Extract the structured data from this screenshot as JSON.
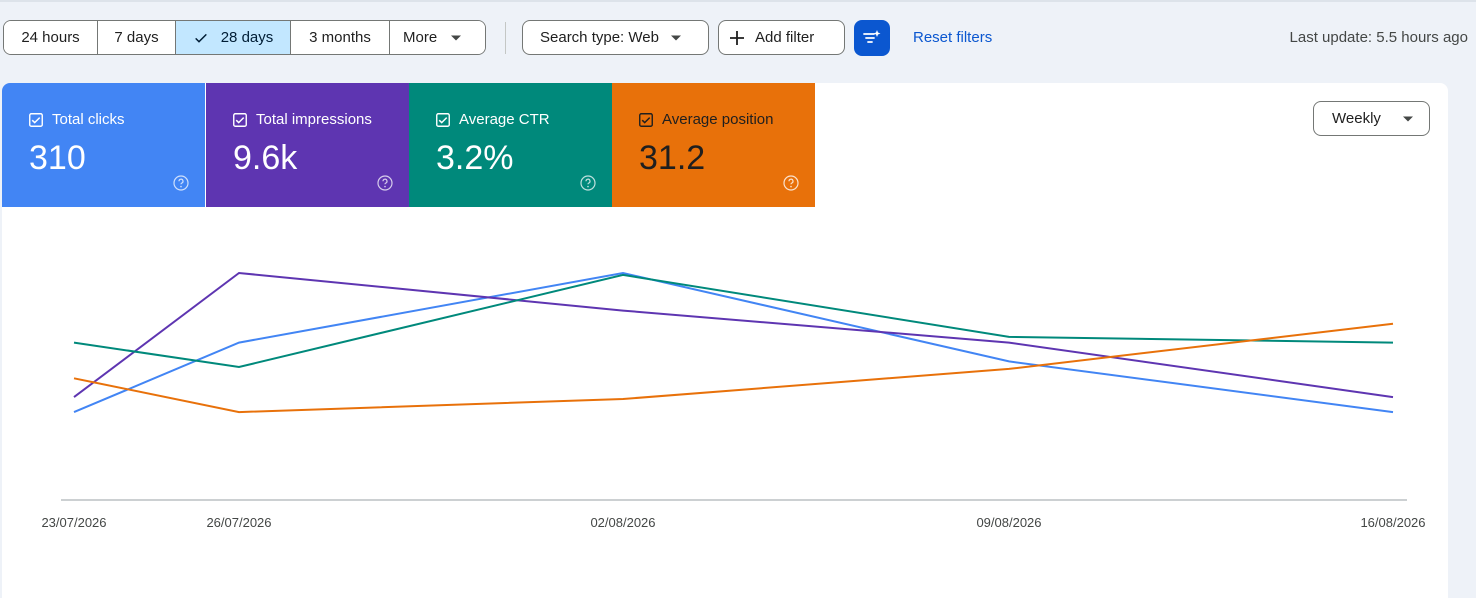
{
  "toolbar": {
    "ranges": [
      {
        "label": "24 hours",
        "active": false
      },
      {
        "label": "7 days",
        "active": false
      },
      {
        "label": "28 days",
        "active": true
      },
      {
        "label": "3 months",
        "active": false
      },
      {
        "label": "More",
        "active": false
      }
    ],
    "search_type": "Search type: Web",
    "add_filter": "Add filter",
    "reset_filters": "Reset filters",
    "last_update": "Last update: 5.5 hours ago"
  },
  "metrics": [
    {
      "label": "Total clicks",
      "value": "310",
      "color": "#4285f4"
    },
    {
      "label": "Total impressions",
      "value": "9.6k",
      "color": "#5e35b1"
    },
    {
      "label": "Average CTR",
      "value": "3.2%",
      "color": "#00897b"
    },
    {
      "label": "Average position",
      "value": "31.2",
      "color": "#e8710a"
    }
  ],
  "granularity": "Weekly",
  "chart_data": {
    "type": "line",
    "x": [
      "23/07/2026",
      "26/07/2026",
      "02/08/2026",
      "09/08/2026",
      "16/08/2026"
    ],
    "series": [
      {
        "name": "Total clicks",
        "color": "#4285f4",
        "values": [
          0.26,
          0.63,
          1.0,
          0.53,
          0.26
        ]
      },
      {
        "name": "Total impressions",
        "color": "#5e35b1",
        "values": [
          0.34,
          1.0,
          0.8,
          0.63,
          0.34
        ]
      },
      {
        "name": "Average CTR",
        "color": "#00897b",
        "values": [
          0.63,
          0.5,
          0.99,
          0.66,
          0.63
        ]
      },
      {
        "name": "Average position",
        "color": "#e8710a",
        "values": [
          0.44,
          0.26,
          0.33,
          0.49,
          0.73
        ]
      }
    ],
    "ylim": [
      0,
      1
    ],
    "grid": false,
    "y_axis_labels": false
  }
}
